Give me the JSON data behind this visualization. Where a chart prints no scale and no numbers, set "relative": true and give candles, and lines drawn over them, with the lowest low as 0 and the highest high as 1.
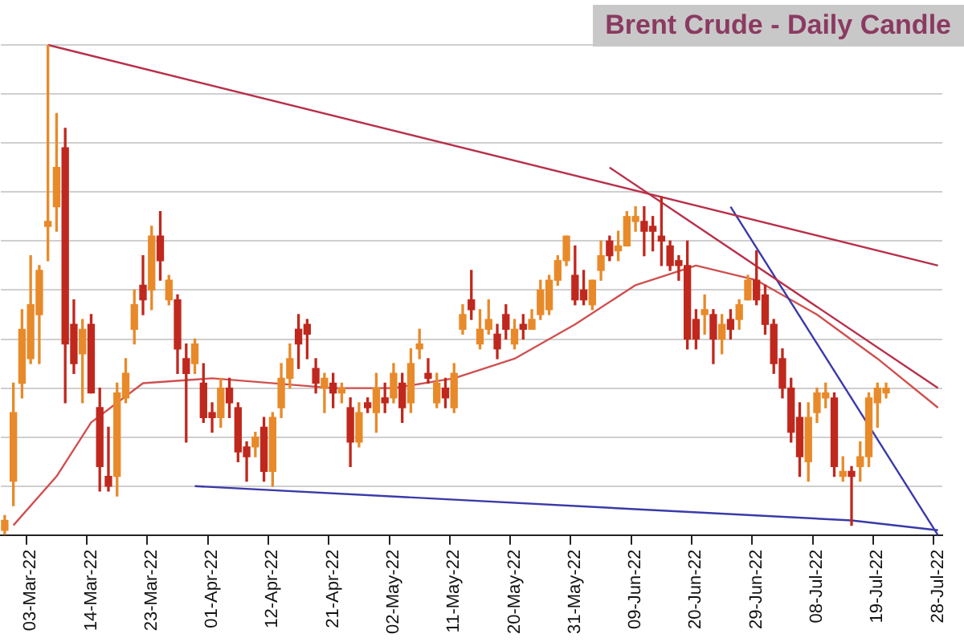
{
  "chart_data": {
    "type": "candlestick",
    "title": "Brent Crude - Daily Candle",
    "relative": true,
    "grid": "y",
    "categories": [
      null,
      null,
      null,
      "03-Mar-22",
      null,
      null,
      null,
      null,
      null,
      null,
      "14-Mar-22",
      null,
      null,
      null,
      null,
      null,
      null,
      "23-Mar-22",
      null,
      null,
      null,
      null,
      null,
      null,
      "01-Apr-22",
      null,
      null,
      null,
      null,
      null,
      null,
      "12-Apr-22",
      null,
      null,
      null,
      null,
      null,
      null,
      "21-Apr-22",
      null,
      null,
      null,
      null,
      null,
      null,
      "02-May-22",
      null,
      null,
      null,
      null,
      null,
      null,
      "11-May-22",
      null,
      null,
      null,
      null,
      null,
      null,
      "20-May-22",
      null,
      null,
      null,
      null,
      null,
      null,
      "31-May-22",
      null,
      null,
      null,
      null,
      null,
      null,
      "09-Jun-22",
      null,
      null,
      null,
      null,
      null,
      null,
      "20-Jun-22",
      null,
      null,
      null,
      null,
      null,
      null,
      "29-Jun-22",
      null,
      null,
      null,
      null,
      null,
      null,
      "08-Jul-22",
      null,
      null,
      null,
      null,
      null,
      null,
      "19-Jul-22",
      null,
      null,
      null,
      null,
      null,
      null,
      "28-Jul-22"
    ],
    "ohlc": [
      [
        0.01,
        0.04,
        0,
        0.03
      ],
      [
        0.11,
        0.31,
        0.06,
        0.25
      ],
      [
        0.31,
        0.46,
        0.28,
        0.42
      ],
      [
        0.36,
        0.57,
        0.35,
        0.47
      ],
      [
        0.45,
        0.55,
        0.35,
        0.54
      ],
      [
        0.63,
        1.0,
        0.56,
        0.64
      ],
      [
        0.67,
        0.86,
        0.62,
        0.75
      ],
      [
        0.79,
        0.83,
        0.27,
        0.39
      ],
      [
        0.43,
        0.48,
        0.33,
        0.35
      ],
      [
        0.37,
        0.44,
        0.27,
        0.42
      ],
      [
        0.43,
        0.45,
        0.29,
        0.29
      ],
      [
        0.26,
        0.3,
        0.09,
        0.14
      ],
      [
        0.12,
        0.22,
        0.09,
        0.1
      ],
      [
        0.12,
        0.31,
        0.08,
        0.29
      ],
      [
        0.28,
        0.36,
        0.27,
        0.33
      ],
      [
        0.42,
        0.5,
        0.39,
        0.47
      ],
      [
        0.51,
        0.57,
        0.45,
        0.48
      ],
      [
        0.5,
        0.63,
        0.46,
        0.61
      ],
      [
        0.61,
        0.66,
        0.52,
        0.56
      ],
      [
        0.48,
        0.53,
        0.47,
        0.52
      ],
      [
        0.48,
        0.49,
        0.33,
        0.38
      ],
      [
        0.36,
        0.39,
        0.19,
        0.33
      ],
      [
        0.35,
        0.4,
        0.33,
        0.39
      ],
      [
        0.31,
        0.35,
        0.23,
        0.24
      ],
      [
        0.25,
        0.27,
        0.21,
        0.24
      ],
      [
        0.24,
        0.32,
        0.22,
        0.3
      ],
      [
        0.3,
        0.32,
        0.24,
        0.27
      ],
      [
        0.26,
        0.27,
        0.15,
        0.17
      ],
      [
        0.18,
        0.19,
        0.11,
        0.16
      ],
      [
        0.18,
        0.21,
        0.16,
        0.2
      ],
      [
        0.22,
        0.24,
        0.11,
        0.13
      ],
      [
        0.13,
        0.25,
        0.1,
        0.24
      ],
      [
        0.26,
        0.35,
        0.24,
        0.32
      ],
      [
        0.32,
        0.39,
        0.3,
        0.36
      ],
      [
        0.42,
        0.45,
        0.34,
        0.39
      ],
      [
        0.43,
        0.44,
        0.36,
        0.41
      ],
      [
        0.34,
        0.36,
        0.29,
        0.31
      ],
      [
        0.3,
        0.33,
        0.25,
        0.32
      ],
      [
        0.31,
        0.33,
        0.26,
        0.29
      ],
      [
        0.29,
        0.31,
        0.27,
        0.3
      ],
      [
        0.26,
        0.28,
        0.14,
        0.19
      ],
      [
        0.19,
        0.27,
        0.18,
        0.25
      ],
      [
        0.27,
        0.28,
        0.25,
        0.26
      ],
      [
        0.25,
        0.33,
        0.21,
        0.3
      ],
      [
        0.28,
        0.31,
        0.25,
        0.27
      ],
      [
        0.28,
        0.35,
        0.27,
        0.33
      ],
      [
        0.31,
        0.33,
        0.23,
        0.26
      ],
      [
        0.27,
        0.38,
        0.25,
        0.35
      ],
      [
        0.38,
        0.42,
        0.36,
        0.39
      ],
      [
        0.33,
        0.36,
        0.31,
        0.32
      ],
      [
        0.27,
        0.33,
        0.26,
        0.31
      ],
      [
        0.3,
        0.32,
        0.26,
        0.28
      ],
      [
        0.26,
        0.35,
        0.25,
        0.33
      ],
      [
        0.42,
        0.47,
        0.41,
        0.45
      ],
      [
        0.48,
        0.54,
        0.44,
        0.46
      ],
      [
        0.39,
        0.46,
        0.38,
        0.42
      ],
      [
        0.42,
        0.48,
        0.41,
        0.44
      ],
      [
        0.41,
        0.43,
        0.36,
        0.38
      ],
      [
        0.45,
        0.47,
        0.4,
        0.42
      ],
      [
        0.39,
        0.44,
        0.38,
        0.42
      ],
      [
        0.43,
        0.45,
        0.4,
        0.42
      ],
      [
        0.42,
        0.46,
        0.42,
        0.44
      ],
      [
        0.45,
        0.52,
        0.44,
        0.5
      ],
      [
        0.46,
        0.53,
        0.45,
        0.52
      ],
      [
        0.52,
        0.57,
        0.51,
        0.56
      ],
      [
        0.56,
        0.61,
        0.55,
        0.61
      ],
      [
        0.53,
        0.59,
        0.47,
        0.48
      ],
      [
        0.5,
        0.54,
        0.47,
        0.48
      ],
      [
        0.47,
        0.52,
        0.46,
        0.52
      ],
      [
        0.54,
        0.6,
        0.52,
        0.57
      ],
      [
        0.6,
        0.61,
        0.56,
        0.57
      ],
      [
        0.58,
        0.62,
        0.56,
        0.59
      ],
      [
        0.59,
        0.66,
        0.59,
        0.65
      ],
      [
        0.64,
        0.67,
        0.62,
        0.65
      ],
      [
        0.64,
        0.67,
        0.57,
        0.62
      ],
      [
        0.63,
        0.65,
        0.58,
        0.62
      ],
      [
        0.61,
        0.69,
        0.55,
        0.6
      ],
      [
        0.59,
        0.6,
        0.54,
        0.55
      ],
      [
        0.56,
        0.57,
        0.52,
        0.55
      ],
      [
        0.55,
        0.6,
        0.38,
        0.4
      ],
      [
        0.44,
        0.46,
        0.38,
        0.4
      ],
      [
        0.45,
        0.49,
        0.41,
        0.46
      ],
      [
        0.45,
        0.46,
        0.35,
        0.4
      ],
      [
        0.4,
        0.45,
        0.37,
        0.43
      ],
      [
        0.44,
        0.46,
        0.4,
        0.42
      ],
      [
        0.44,
        0.48,
        0.42,
        0.47
      ],
      [
        0.48,
        0.53,
        0.48,
        0.52
      ],
      [
        0.52,
        0.58,
        0.47,
        0.48
      ],
      [
        0.49,
        0.51,
        0.41,
        0.43
      ],
      [
        0.43,
        0.44,
        0.33,
        0.35
      ],
      [
        0.36,
        0.38,
        0.28,
        0.3
      ],
      [
        0.3,
        0.32,
        0.19,
        0.21
      ],
      [
        0.24,
        0.27,
        0.12,
        0.16
      ],
      [
        0.15,
        0.27,
        0.11,
        0.24
      ],
      [
        0.25,
        0.3,
        0.23,
        0.29
      ],
      [
        0.28,
        0.31,
        0.26,
        0.29
      ],
      [
        0.28,
        0.29,
        0.12,
        0.14
      ],
      [
        0.12,
        0.16,
        0.11,
        0.13
      ],
      [
        0.13,
        0.14,
        0.02,
        0.12
      ],
      [
        0.14,
        0.19,
        0.11,
        0.16
      ],
      [
        0.16,
        0.29,
        0.14,
        0.28
      ],
      [
        0.27,
        0.31,
        0.22,
        0.3
      ],
      [
        0.29,
        0.31,
        0.28,
        0.3
      ],
      null,
      null,
      null,
      null,
      null,
      null
    ],
    "colors": [
      "#e88a2a",
      "#e88a2a",
      "#e88a2a",
      "#e88a2a",
      "#e88a2a",
      "#e88a2a",
      "#e88a2a",
      "#c0281e",
      "#c0281e",
      "#e88a2a",
      "#c0281e",
      "#c0281e",
      "#c0281e",
      "#e88a2a",
      "#e88a2a",
      "#e88a2a",
      "#c0281e",
      "#e88a2a",
      "#c0281e",
      "#e88a2a",
      "#c0281e",
      "#c0281e",
      "#e88a2a",
      "#c0281e",
      "#c0281e",
      "#e88a2a",
      "#c0281e",
      "#c0281e",
      "#c0281e",
      "#e88a2a",
      "#c0281e",
      "#e88a2a",
      "#e88a2a",
      "#e88a2a",
      "#c0281e",
      "#c0281e",
      "#c0281e",
      "#e88a2a",
      "#c0281e",
      "#e88a2a",
      "#c0281e",
      "#e88a2a",
      "#c0281e",
      "#e88a2a",
      "#c0281e",
      "#e88a2a",
      "#c0281e",
      "#e88a2a",
      "#e88a2a",
      "#c0281e",
      "#e88a2a",
      "#c0281e",
      "#e88a2a",
      "#e88a2a",
      "#c0281e",
      "#e88a2a",
      "#e88a2a",
      "#c0281e",
      "#c0281e",
      "#e88a2a",
      "#c0281e",
      "#e88a2a",
      "#e88a2a",
      "#e88a2a",
      "#e88a2a",
      "#e88a2a",
      "#c0281e",
      "#c0281e",
      "#e88a2a",
      "#e88a2a",
      "#c0281e",
      "#e88a2a",
      "#e88a2a",
      "#e88a2a",
      "#c0281e",
      "#c0281e",
      "#c0281e",
      "#c0281e",
      "#c0281e",
      "#c0281e",
      "#c0281e",
      "#e88a2a",
      "#c0281e",
      "#e88a2a",
      "#c0281e",
      "#e88a2a",
      "#e88a2a",
      "#c0281e",
      "#c0281e",
      "#c0281e",
      "#c0281e",
      "#c0281e",
      "#c0281e",
      "#e88a2a",
      "#e88a2a",
      "#e88a2a",
      "#c0281e",
      "#e88a2a",
      "#c0281e",
      "#e88a2a",
      "#e88a2a",
      "#e88a2a",
      "#e88a2a",
      null,
      null,
      null,
      null,
      null,
      null
    ],
    "series": [
      {
        "type": "line",
        "color": "#b8304a",
        "values": [
          null,
          null,
          null,
          null,
          null,
          1.0,
          null,
          null,
          null,
          null,
          null,
          null,
          null,
          null,
          null,
          null,
          null,
          null,
          null,
          null,
          null,
          null,
          null,
          null,
          null,
          null,
          null,
          null,
          null,
          null,
          null,
          null,
          null,
          null,
          null,
          null,
          null,
          null,
          null,
          null,
          null,
          null,
          null,
          null,
          null,
          null,
          null,
          null,
          null,
          null,
          null,
          null,
          null,
          null,
          null,
          null,
          null,
          null,
          null,
          null,
          null,
          null,
          null,
          null,
          null,
          null,
          null,
          null,
          null,
          null,
          null,
          null,
          null,
          null,
          null,
          null,
          null,
          null,
          null,
          null,
          null,
          null,
          null,
          null,
          null,
          null,
          null,
          null,
          null,
          null,
          null,
          null,
          null,
          null,
          null,
          null,
          null,
          null,
          null,
          null,
          null,
          null,
          null,
          null,
          null,
          null,
          null,
          null,
          0.55
        ]
      },
      {
        "type": "line",
        "color": "#b8304a",
        "values": [
          null,
          null,
          null,
          null,
          null,
          null,
          null,
          null,
          null,
          null,
          null,
          null,
          null,
          null,
          null,
          null,
          null,
          null,
          null,
          null,
          null,
          null,
          null,
          null,
          null,
          null,
          null,
          null,
          null,
          null,
          null,
          null,
          null,
          null,
          null,
          null,
          null,
          null,
          null,
          null,
          null,
          null,
          null,
          null,
          null,
          null,
          null,
          null,
          null,
          null,
          null,
          null,
          null,
          null,
          null,
          null,
          null,
          null,
          null,
          null,
          null,
          null,
          null,
          null,
          null,
          null,
          null,
          null,
          null,
          null,
          0.75,
          null,
          null,
          null,
          null,
          null,
          null,
          null,
          null,
          null,
          null,
          null,
          null,
          null,
          null,
          null,
          null,
          null,
          null,
          null,
          null,
          null,
          null,
          null,
          null,
          null,
          null,
          null,
          null,
          null,
          null,
          null,
          null,
          null,
          null,
          null,
          null,
          null,
          0.3
        ]
      },
      {
        "type": "line",
        "color": "#3a3aa8",
        "values": [
          null,
          null,
          null,
          null,
          null,
          null,
          null,
          null,
          null,
          null,
          null,
          null,
          null,
          null,
          null,
          null,
          null,
          null,
          null,
          null,
          null,
          null,
          null,
          null,
          null,
          null,
          null,
          null,
          null,
          null,
          null,
          null,
          null,
          null,
          null,
          null,
          null,
          null,
          null,
          null,
          null,
          null,
          null,
          null,
          null,
          null,
          null,
          null,
          null,
          null,
          null,
          null,
          null,
          null,
          null,
          null,
          null,
          null,
          null,
          null,
          null,
          null,
          null,
          null,
          null,
          null,
          null,
          null,
          null,
          null,
          null,
          null,
          null,
          null,
          null,
          null,
          null,
          null,
          null,
          null,
          null,
          null,
          null,
          null,
          0.67,
          null,
          null,
          null,
          null,
          null,
          null,
          null,
          null,
          null,
          null,
          null,
          null,
          null,
          null,
          null,
          null,
          null,
          null,
          null,
          null,
          null,
          null,
          null,
          0.0
        ]
      },
      {
        "type": "line",
        "color": "#3a3aa8",
        "values": [
          null,
          null,
          null,
          null,
          null,
          null,
          null,
          null,
          null,
          null,
          null,
          null,
          null,
          null,
          null,
          null,
          null,
          null,
          null,
          null,
          null,
          null,
          0.1,
          null,
          null,
          null,
          null,
          null,
          null,
          null,
          null,
          null,
          null,
          null,
          null,
          null,
          null,
          null,
          null,
          null,
          null,
          null,
          null,
          null,
          null,
          null,
          null,
          null,
          null,
          null,
          null,
          null,
          null,
          null,
          null,
          null,
          null,
          null,
          null,
          null,
          null,
          null,
          null,
          null,
          null,
          null,
          null,
          null,
          null,
          null,
          null,
          null,
          null,
          null,
          null,
          null,
          null,
          null,
          null,
          null,
          null,
          null,
          null,
          null,
          null,
          null,
          null,
          null,
          null,
          null,
          null,
          null,
          null,
          null,
          null,
          null,
          null,
          null,
          0.03,
          null,
          null,
          null,
          null,
          null,
          null,
          null,
          null,
          null,
          0.01
        ]
      },
      {
        "type": "line",
        "color": "#d05050",
        "values": [
          null,
          0.02,
          null,
          null,
          null,
          null,
          0.12,
          null,
          null,
          null,
          0.23,
          null,
          null,
          null,
          null,
          null,
          0.31,
          null,
          null,
          null,
          null,
          null,
          null,
          null,
          0.32,
          null,
          null,
          null,
          null,
          null,
          null,
          null,
          null,
          null,
          null,
          null,
          null,
          null,
          0.3,
          null,
          null,
          null,
          null,
          null,
          null,
          0.3,
          null,
          null,
          null,
          null,
          null,
          null,
          0.32,
          null,
          null,
          null,
          null,
          null,
          null,
          0.36,
          null,
          null,
          null,
          null,
          null,
          null,
          0.43,
          null,
          null,
          null,
          null,
          null,
          null,
          0.51,
          null,
          null,
          null,
          null,
          null,
          null,
          0.55,
          null,
          null,
          null,
          null,
          null,
          null,
          0.52,
          null,
          null,
          null,
          null,
          null,
          null,
          0.45,
          null,
          null,
          null,
          null,
          null,
          null,
          0.36,
          null,
          null,
          null,
          null,
          null,
          null,
          0.26
        ]
      }
    ]
  }
}
